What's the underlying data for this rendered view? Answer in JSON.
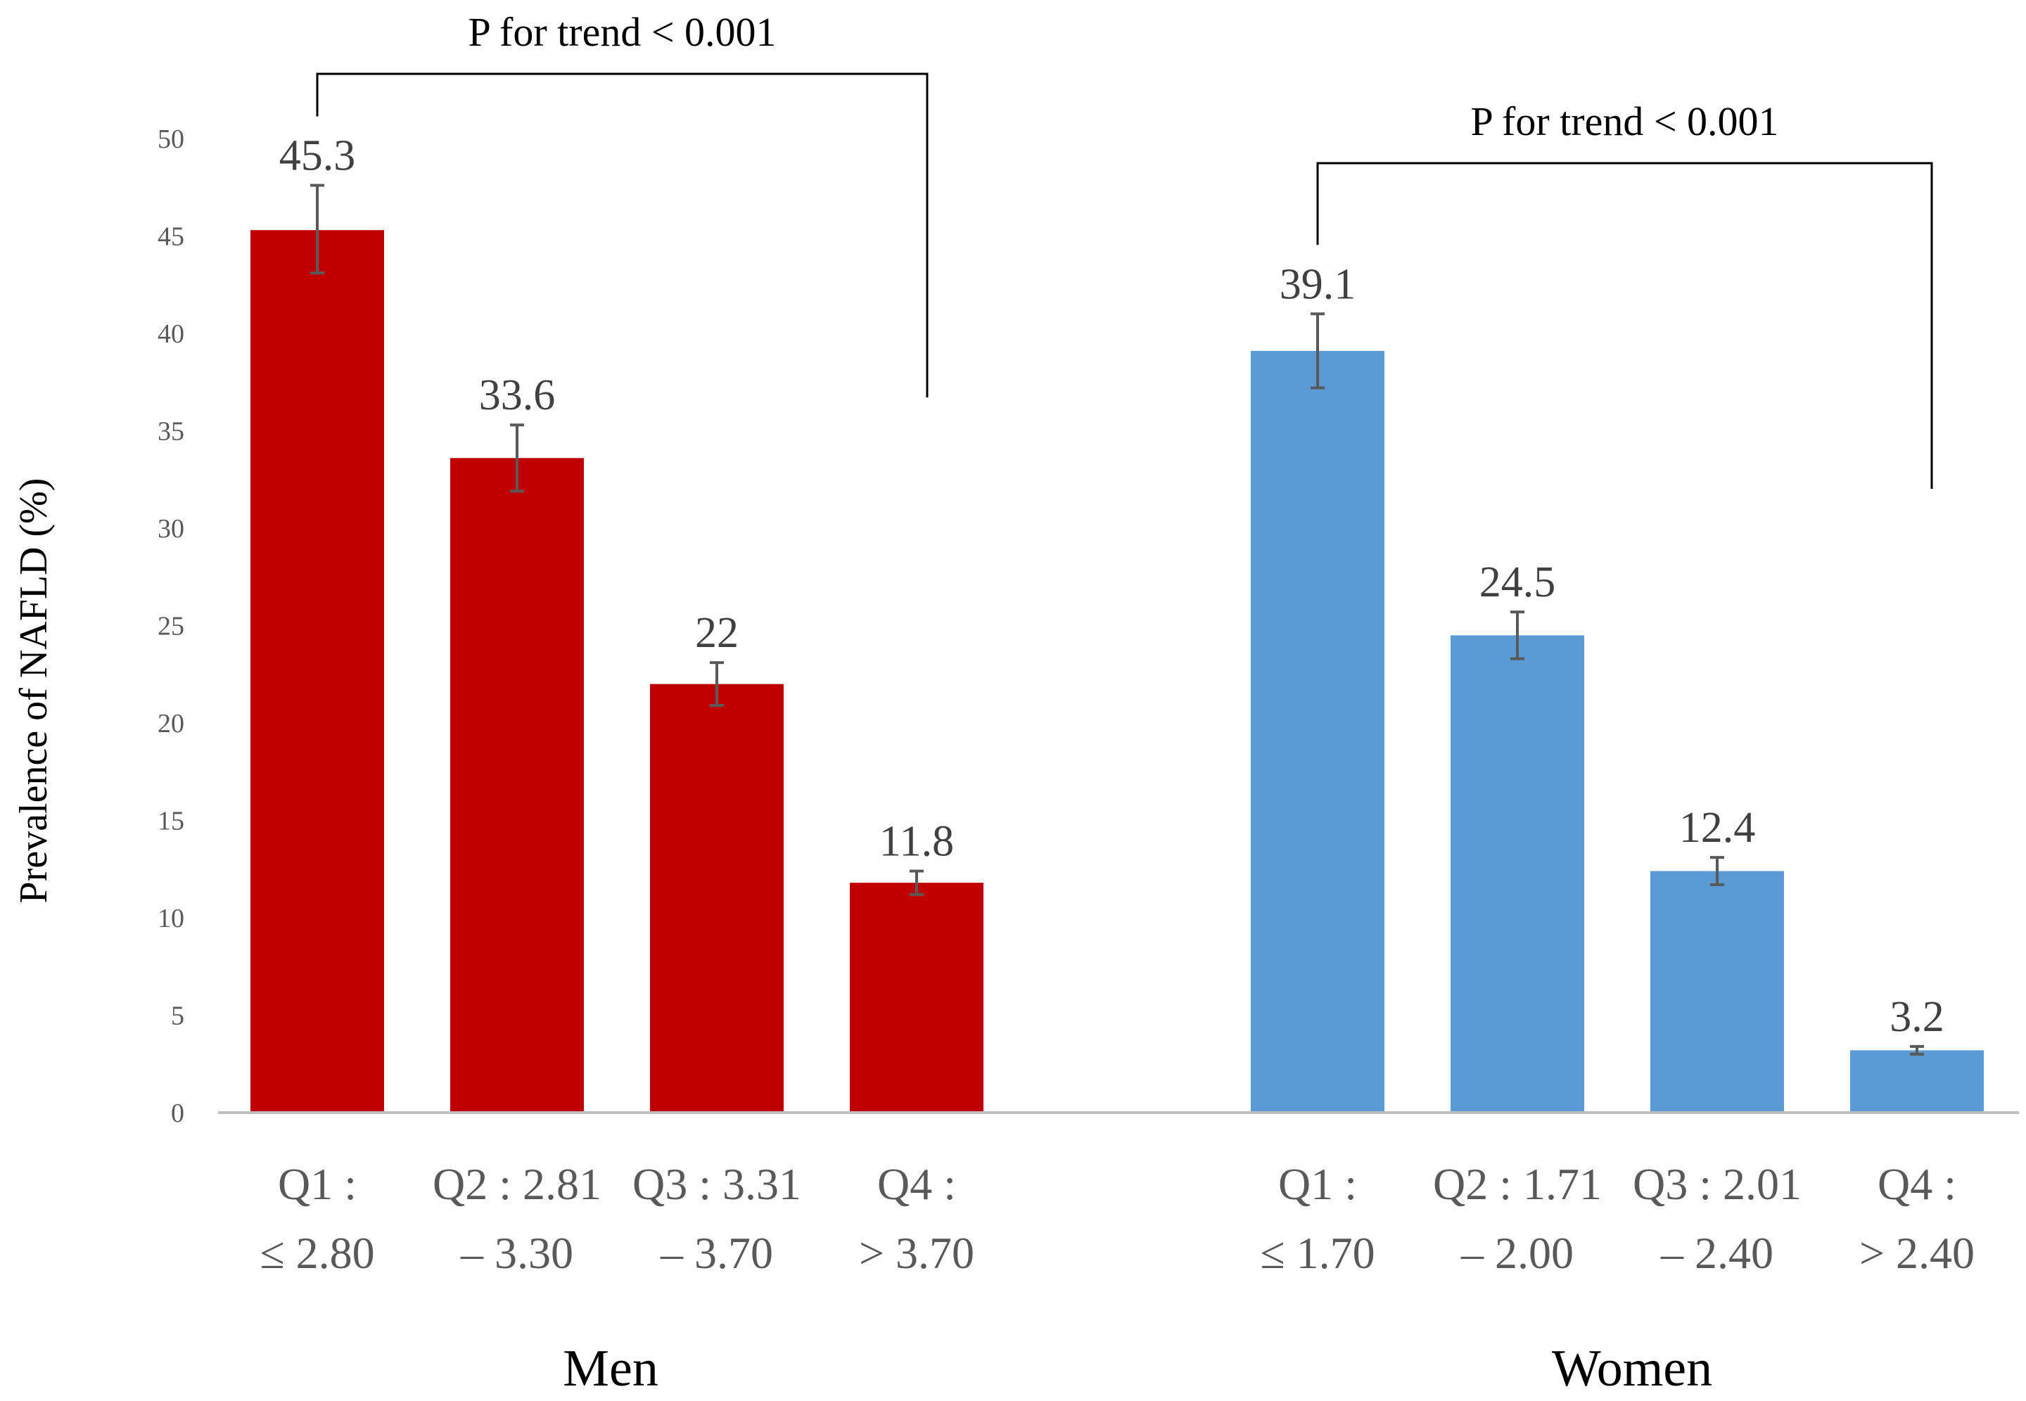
{
  "chart_data": {
    "type": "bar",
    "title": "",
    "xlabel": "",
    "ylabel": "Prevalence of NAFLD (%)",
    "ylim": [
      0,
      50
    ],
    "yticks": [
      0,
      5,
      10,
      15,
      20,
      25,
      30,
      35,
      40,
      45,
      50
    ],
    "grid": false,
    "groups": [
      {
        "name": "Men",
        "color": "#C00000",
        "categories": [
          [
            "Q1 :",
            "≤ 2.80"
          ],
          [
            "Q2 : 2.81",
            "– 3.30"
          ],
          [
            "Q3 : 3.31",
            "– 3.70"
          ],
          [
            "Q4 :",
            "> 3.70"
          ]
        ],
        "values": [
          45.3,
          33.6,
          22,
          11.8
        ],
        "value_labels": [
          "45.3",
          "33.6",
          "22",
          "11.8"
        ],
        "error_lower": [
          43.1,
          31.9,
          20.9,
          11.2
        ],
        "error_upper": [
          47.6,
          35.3,
          23.1,
          12.4
        ],
        "trend_text": "P for trend < 0.001"
      },
      {
        "name": "Women",
        "color": "#5B9BD5",
        "categories": [
          [
            "Q1 :",
            "≤ 1.70"
          ],
          [
            "Q2 : 1.71",
            "– 2.00"
          ],
          [
            "Q3 : 2.01",
            "– 2.40"
          ],
          [
            "Q4 :",
            "> 2.40"
          ]
        ],
        "values": [
          39.1,
          24.5,
          12.4,
          3.2
        ],
        "value_labels": [
          "39.1",
          "24.5",
          "12.4",
          "3.2"
        ],
        "error_lower": [
          37.2,
          23.3,
          11.7,
          3.0
        ],
        "error_upper": [
          41.0,
          25.7,
          13.1,
          3.4
        ],
        "trend_text": "P for trend < 0.001"
      }
    ],
    "colors": {
      "axis": "#BFBFBF",
      "error_bar": "#595959",
      "bracket": "#000000"
    }
  }
}
